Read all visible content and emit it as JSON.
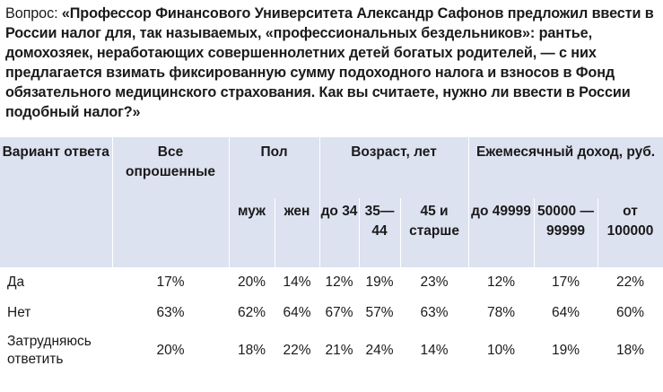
{
  "question": {
    "label": "Вопрос: ",
    "text": "«Профессор Финансового Университета Александр Сафонов предложил ввести в России налог для, так называемых, «профессиональных бездельников»: рантье, домохозяек, неработающих совершеннолетних детей богатых родителей, — с них предлагается взимать фиксированную сумму подоходного налога и взносов в Фонд обязательного медицинского страхования. Как вы считаете, нужно ли ввести в России подобный налог?»"
  },
  "table": {
    "header": {
      "answer": "Вариант ответа",
      "all": "Все опрошенные",
      "gender": "Пол",
      "age": "Возраст, лет",
      "income": "Ежемесячный доход, руб."
    },
    "subheader": {
      "male": "муж",
      "female": "жен",
      "age1": "до 34",
      "age2": "35— 44",
      "age3": "45 и старше",
      "inc1": "до 49999",
      "inc2": "50000 — 99999",
      "inc3": "от 100000"
    },
    "rows": [
      {
        "answer": "Да",
        "values": [
          "17%",
          "20%",
          "14%",
          "12%",
          "19%",
          "23%",
          "12%",
          "17%",
          "22%"
        ]
      },
      {
        "answer": "Нет",
        "values": [
          "63%",
          "62%",
          "64%",
          "67%",
          "57%",
          "63%",
          "78%",
          "64%",
          "60%"
        ]
      },
      {
        "answer": "Затрудняюсь ответить",
        "values": [
          "20%",
          "18%",
          "22%",
          "21%",
          "24%",
          "14%",
          "10%",
          "19%",
          "18%"
        ]
      }
    ]
  }
}
